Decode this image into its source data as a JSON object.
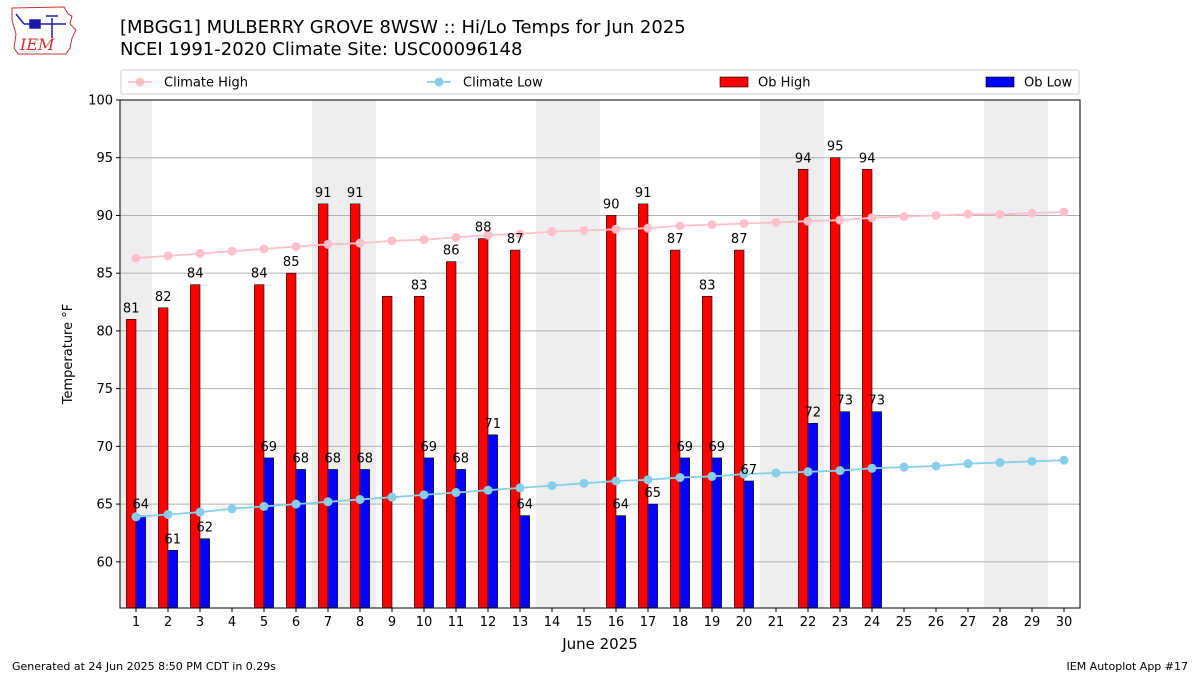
{
  "title": "[MBGG1] MULBERRY GROVE 8WSW :: Hi/Lo Temps for Jun 2025",
  "subtitle": "NCEI 1991-2020 Climate Site: USC00096148",
  "footer_left": "Generated at 24 Jun 2025 8:50 PM CDT in 0.29s",
  "footer_right": "IEM Autoplot App #17",
  "logo_text": "IEM",
  "colors": {
    "ob_high": "#ff0000",
    "ob_low": "#0000ff",
    "climate_high": "#ffc0cb",
    "climate_low": "#87ceeb",
    "weekend_band": "#eeeeee"
  },
  "chart_data": {
    "type": "bar",
    "xlabel": "June 2025",
    "ylabel": "Temperature °F",
    "ylim": [
      56,
      100
    ],
    "xlim": [
      0.5,
      30.5
    ],
    "yticks": [
      60,
      65,
      70,
      75,
      80,
      85,
      90,
      95,
      100
    ],
    "days": [
      1,
      2,
      3,
      4,
      5,
      6,
      7,
      8,
      9,
      10,
      11,
      12,
      13,
      14,
      15,
      16,
      17,
      18,
      19,
      20,
      21,
      22,
      23,
      24,
      25,
      26,
      27,
      28,
      29,
      30
    ],
    "grid": "horizontal",
    "legend": "top",
    "weekend_days": [
      1,
      7,
      8,
      14,
      15,
      21,
      22,
      28,
      29
    ],
    "series": [
      {
        "name": "Climate High",
        "type": "line",
        "values": [
          86.3,
          86.5,
          86.7,
          86.9,
          87.1,
          87.3,
          87.5,
          87.6,
          87.8,
          87.9,
          88.1,
          88.3,
          88.4,
          88.6,
          88.7,
          88.8,
          88.9,
          89.1,
          89.2,
          89.3,
          89.4,
          89.5,
          89.6,
          89.8,
          89.9,
          90.0,
          90.1,
          90.1,
          90.2,
          90.3
        ]
      },
      {
        "name": "Climate Low",
        "type": "line",
        "values": [
          63.9,
          64.1,
          64.3,
          64.6,
          64.8,
          65.0,
          65.2,
          65.4,
          65.6,
          65.8,
          66.0,
          66.2,
          66.4,
          66.6,
          66.8,
          67.0,
          67.1,
          67.3,
          67.4,
          67.6,
          67.7,
          67.8,
          67.9,
          68.1,
          68.2,
          68.3,
          68.5,
          68.6,
          68.7,
          68.8
        ]
      },
      {
        "name": "Ob High",
        "type": "bar",
        "values": [
          81,
          82,
          84,
          null,
          84,
          85,
          91,
          91,
          83,
          83,
          86,
          88,
          87,
          null,
          null,
          90,
          91,
          87,
          83,
          87,
          null,
          94,
          95,
          94,
          null,
          null,
          null,
          null,
          null,
          null
        ],
        "labels": [
          "81",
          "82",
          "84",
          "",
          "84",
          "85",
          "91",
          "91",
          "",
          "83",
          "86",
          "88",
          "87",
          "",
          "",
          "90",
          "91",
          "87",
          "83",
          "87",
          "",
          "94",
          "95",
          "94",
          "",
          "",
          "",
          "",
          "",
          ""
        ]
      },
      {
        "name": "Ob Low",
        "type": "bar",
        "values": [
          64,
          61,
          62,
          null,
          69,
          68,
          68,
          68,
          null,
          69,
          68,
          71,
          64,
          null,
          null,
          64,
          65,
          69,
          69,
          67,
          null,
          72,
          73,
          73,
          null,
          null,
          null,
          null,
          null,
          null
        ],
        "labels": [
          "64",
          "61",
          "62",
          "",
          "69",
          "68",
          "68",
          "68",
          "",
          "69",
          "68",
          "71",
          "64",
          "",
          "",
          "64",
          "65",
          "69",
          "69",
          "67",
          "",
          "72",
          "73",
          "73",
          "",
          "",
          "",
          "",
          "",
          ""
        ]
      }
    ]
  }
}
